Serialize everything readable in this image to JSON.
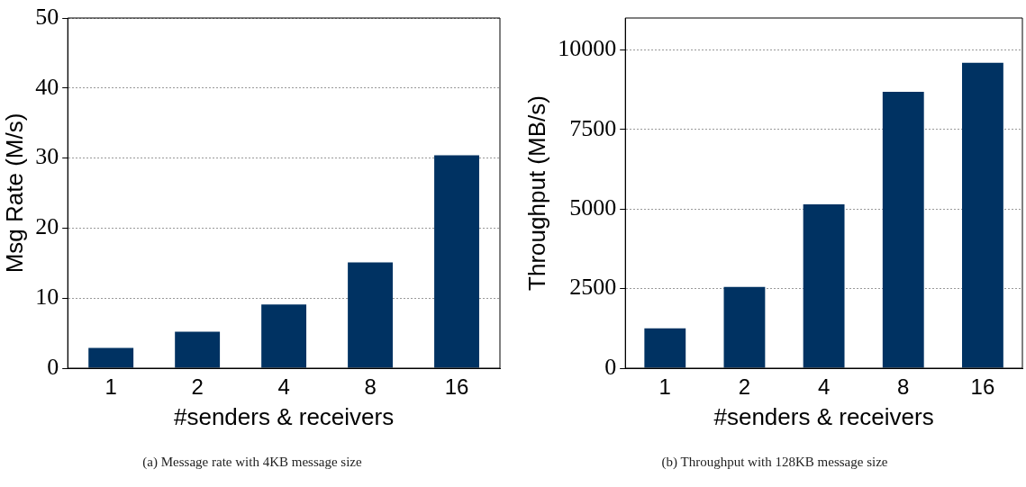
{
  "chart_data": [
    {
      "type": "bar",
      "categories": [
        "1",
        "2",
        "4",
        "8",
        "16"
      ],
      "values": [
        2.9,
        5.2,
        9.1,
        15.1,
        30.4
      ],
      "color": "#003262",
      "xlabel": "#senders & receivers",
      "ylabel": "Msg Rate (M/s)",
      "ylim": [
        0,
        50
      ],
      "yticks": [
        0,
        10,
        20,
        30,
        40,
        50
      ],
      "grid": "y",
      "annotations": [
        "(a) Message rate with 4KB message size"
      ]
    },
    {
      "type": "bar",
      "categories": [
        "1",
        "2",
        "4",
        "8",
        "16"
      ],
      "values": [
        1250,
        2550,
        5150,
        8680,
        9590
      ],
      "color": "#003262",
      "xlabel": "#senders & receivers",
      "ylabel": "Throughput (MB/s)",
      "ylim": [
        0,
        11000
      ],
      "yticks": [
        0,
        2500,
        5000,
        7500,
        10000
      ],
      "grid": "y",
      "annotations": [
        "(b) Throughput with 128KB message size"
      ]
    }
  ]
}
